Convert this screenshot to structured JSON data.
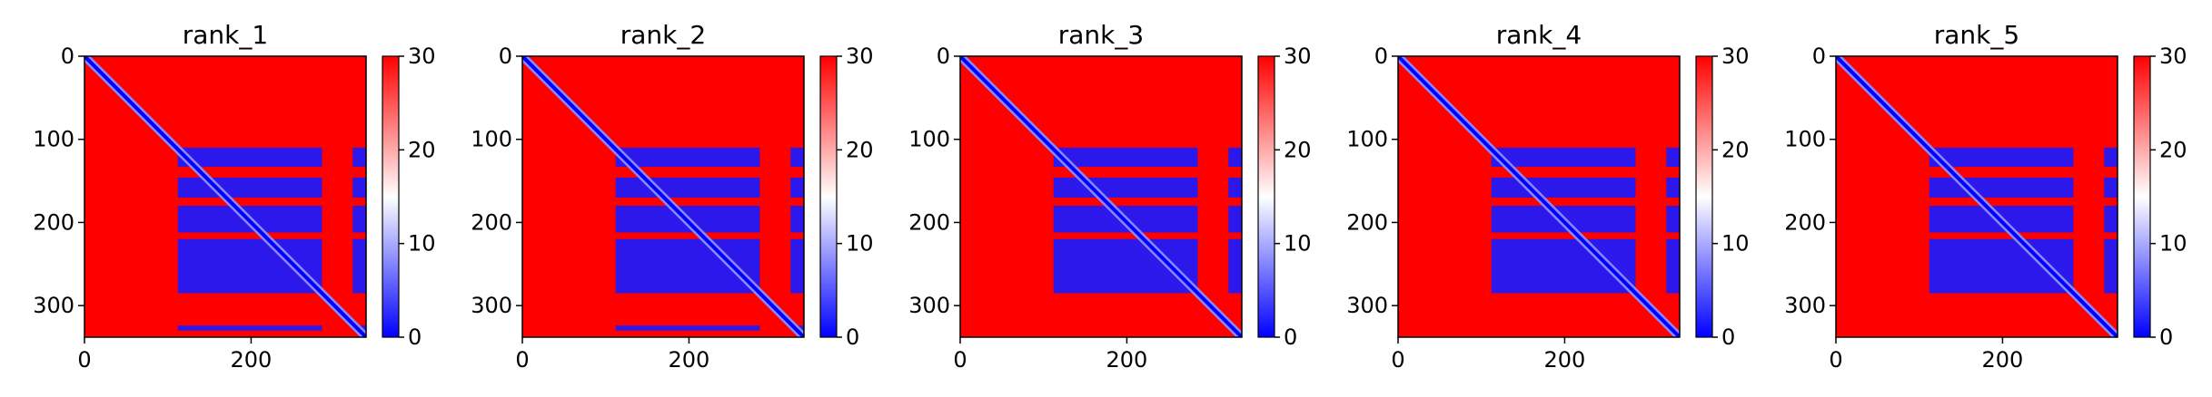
{
  "chart_data": [
    {
      "type": "heatmap",
      "title": "rank_1",
      "xlim": [
        0,
        338
      ],
      "ylim": [
        0,
        338
      ],
      "xticks": [
        0,
        200
      ],
      "yticks": [
        0,
        100,
        200,
        300
      ],
      "colorbar": {
        "cmap": "bwr",
        "vmin": 0,
        "vmax": 30,
        "ticks": [
          0,
          10,
          20,
          30
        ]
      },
      "diagonal_value": 0,
      "background_value": 30,
      "blocks": {
        "columns": [
          [
            112,
            285
          ],
          [
            322,
            338
          ]
        ],
        "rows": [
          [
            110,
            133
          ],
          [
            146,
            170
          ],
          [
            180,
            212
          ],
          [
            220,
            285
          ],
          [
            324,
            330
          ]
        ],
        "value": 1.5
      }
    },
    {
      "type": "heatmap",
      "title": "rank_2",
      "xlim": [
        0,
        338
      ],
      "ylim": [
        0,
        338
      ],
      "xticks": [
        0,
        200
      ],
      "yticks": [
        0,
        100,
        200,
        300
      ],
      "colorbar": {
        "cmap": "bwr",
        "vmin": 0,
        "vmax": 30,
        "ticks": [
          0,
          10,
          20,
          30
        ]
      },
      "diagonal_value": 0,
      "background_value": 30,
      "blocks": {
        "columns": [
          [
            112,
            285
          ],
          [
            322,
            338
          ]
        ],
        "rows": [
          [
            110,
            133
          ],
          [
            146,
            170
          ],
          [
            180,
            212
          ],
          [
            220,
            285
          ],
          [
            324,
            330
          ]
        ],
        "value": 1.5
      }
    },
    {
      "type": "heatmap",
      "title": "rank_3",
      "xlim": [
        0,
        338
      ],
      "ylim": [
        0,
        338
      ],
      "xticks": [
        0,
        200
      ],
      "yticks": [
        0,
        100,
        200,
        300
      ],
      "colorbar": {
        "cmap": "bwr",
        "vmin": 0,
        "vmax": 30,
        "ticks": [
          0,
          10,
          20,
          30
        ]
      },
      "diagonal_value": 0,
      "background_value": 30,
      "blocks": {
        "columns": [
          [
            112,
            285
          ],
          [
            322,
            338
          ]
        ],
        "rows": [
          [
            110,
            133
          ],
          [
            146,
            170
          ],
          [
            180,
            212
          ],
          [
            220,
            285
          ]
        ],
        "value": 1.5
      }
    },
    {
      "type": "heatmap",
      "title": "rank_4",
      "xlim": [
        0,
        338
      ],
      "ylim": [
        0,
        338
      ],
      "xticks": [
        0,
        200
      ],
      "yticks": [
        0,
        100,
        200,
        300
      ],
      "colorbar": {
        "cmap": "bwr",
        "vmin": 0,
        "vmax": 30,
        "ticks": [
          0,
          10,
          20,
          30
        ]
      },
      "diagonal_value": 0,
      "background_value": 30,
      "blocks": {
        "columns": [
          [
            112,
            285
          ],
          [
            322,
            338
          ]
        ],
        "rows": [
          [
            110,
            133
          ],
          [
            146,
            170
          ],
          [
            180,
            212
          ],
          [
            220,
            285
          ]
        ],
        "value": 1.5
      }
    },
    {
      "type": "heatmap",
      "title": "rank_5",
      "xlim": [
        0,
        338
      ],
      "ylim": [
        0,
        338
      ],
      "xticks": [
        0,
        200
      ],
      "yticks": [
        0,
        100,
        200,
        300
      ],
      "colorbar": {
        "cmap": "bwr",
        "vmin": 0,
        "vmax": 30,
        "ticks": [
          0,
          10,
          20,
          30
        ]
      },
      "diagonal_value": 0,
      "background_value": 30,
      "blocks": {
        "columns": [
          [
            112,
            285
          ],
          [
            322,
            338
          ]
        ],
        "rows": [
          [
            110,
            133
          ],
          [
            146,
            170
          ],
          [
            180,
            212
          ],
          [
            220,
            285
          ]
        ],
        "value": 1.5
      }
    }
  ],
  "colors": {
    "low": "#0000ff",
    "mid": "#ffffff",
    "high": "#ff0000",
    "axis": "#000000"
  }
}
